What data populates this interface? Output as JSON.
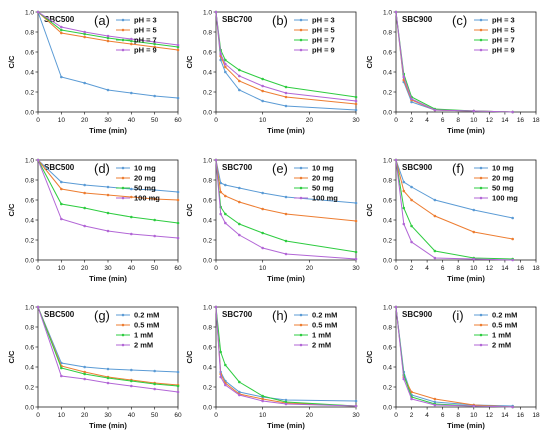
{
  "figure": {
    "colors": [
      "#5b9bd5",
      "#ed7d31",
      "#2ecc40",
      "#b266d6"
    ]
  },
  "chart_data": [
    {
      "id": "a",
      "type": "line",
      "panel_label": "(a)",
      "title": "SBC500",
      "xlabel": "Time (min)",
      "ylabel": "C/C",
      "xlim": [
        0,
        60
      ],
      "ylim": [
        0,
        1.0
      ],
      "xticks": [
        0,
        10,
        20,
        30,
        40,
        50,
        60
      ],
      "yticks": [
        0.0,
        0.2,
        0.4,
        0.6,
        0.8,
        1.0
      ],
      "x": [
        0,
        10,
        20,
        30,
        40,
        50,
        60
      ],
      "series": [
        {
          "name": "pH = 3",
          "values": [
            1.0,
            0.35,
            0.29,
            0.22,
            0.19,
            0.16,
            0.14
          ]
        },
        {
          "name": "pH = 5",
          "values": [
            1.0,
            0.79,
            0.75,
            0.71,
            0.68,
            0.65,
            0.62
          ]
        },
        {
          "name": "pH = 7",
          "values": [
            1.0,
            0.82,
            0.78,
            0.74,
            0.71,
            0.68,
            0.65
          ]
        },
        {
          "name": "pH = 9",
          "values": [
            1.0,
            0.85,
            0.8,
            0.76,
            0.73,
            0.7,
            0.67
          ]
        }
      ]
    },
    {
      "id": "b",
      "type": "line",
      "panel_label": "(b)",
      "title": "SBC700",
      "xlabel": "Time (min)",
      "ylabel": "C/C",
      "xlim": [
        0,
        30
      ],
      "ylim": [
        0,
        1.0
      ],
      "xticks": [
        0,
        10,
        20,
        30
      ],
      "yticks": [
        0.0,
        0.2,
        0.4,
        0.6,
        0.8,
        1.0
      ],
      "x": [
        0,
        1,
        2,
        5,
        10,
        15,
        30
      ],
      "series": [
        {
          "name": "pH = 3",
          "values": [
            1.0,
            0.52,
            0.4,
            0.22,
            0.11,
            0.06,
            0.02
          ]
        },
        {
          "name": "pH = 5",
          "values": [
            1.0,
            0.56,
            0.45,
            0.31,
            0.21,
            0.15,
            0.08
          ]
        },
        {
          "name": "pH = 7",
          "values": [
            1.0,
            0.62,
            0.52,
            0.42,
            0.33,
            0.25,
            0.15
          ]
        },
        {
          "name": "pH = 9",
          "values": [
            1.0,
            0.58,
            0.48,
            0.36,
            0.26,
            0.19,
            0.11
          ]
        }
      ]
    },
    {
      "id": "c",
      "type": "line",
      "panel_label": "(c)",
      "title": "SBC900",
      "xlabel": "Time (min)",
      "ylabel": "C/C",
      "xlim": [
        0,
        18
      ],
      "ylim": [
        0,
        1.0
      ],
      "xticks": [
        0,
        2,
        4,
        6,
        8,
        10,
        12,
        14,
        16,
        18
      ],
      "yticks": [
        0.0,
        0.2,
        0.4,
        0.6,
        0.8,
        1.0
      ],
      "x": [
        0,
        1,
        2,
        5,
        10,
        15
      ],
      "series": [
        {
          "name": "pH = 3",
          "values": [
            1.0,
            0.3,
            0.1,
            0.02,
            0.01,
            0.0
          ]
        },
        {
          "name": "pH = 5",
          "values": [
            1.0,
            0.32,
            0.12,
            0.02,
            0.01,
            0.0
          ]
        },
        {
          "name": "pH = 7",
          "values": [
            1.0,
            0.38,
            0.15,
            0.03,
            0.01,
            0.0
          ]
        },
        {
          "name": "pH = 9",
          "values": [
            1.0,
            0.35,
            0.13,
            0.02,
            0.01,
            0.0
          ]
        }
      ]
    },
    {
      "id": "d",
      "type": "line",
      "panel_label": "(d)",
      "title": "SBC500",
      "xlabel": "Time (min)",
      "ylabel": "C/C",
      "xlim": [
        0,
        60
      ],
      "ylim": [
        0,
        1.0
      ],
      "xticks": [
        0,
        10,
        20,
        30,
        40,
        50,
        60
      ],
      "yticks": [
        0.0,
        0.2,
        0.4,
        0.6,
        0.8,
        1.0
      ],
      "x": [
        0,
        10,
        20,
        30,
        40,
        50,
        60
      ],
      "series": [
        {
          "name": "10 mg",
          "values": [
            1.0,
            0.78,
            0.75,
            0.73,
            0.71,
            0.7,
            0.68
          ]
        },
        {
          "name": "20 mg",
          "values": [
            1.0,
            0.71,
            0.67,
            0.65,
            0.63,
            0.61,
            0.6
          ]
        },
        {
          "name": "50 mg",
          "values": [
            1.0,
            0.56,
            0.52,
            0.47,
            0.43,
            0.4,
            0.37
          ]
        },
        {
          "name": "100 mg",
          "values": [
            1.0,
            0.41,
            0.34,
            0.29,
            0.26,
            0.24,
            0.22
          ]
        }
      ]
    },
    {
      "id": "e",
      "type": "line",
      "panel_label": "(e)",
      "title": "SBC700",
      "xlabel": "Time (min)",
      "ylabel": "C/C",
      "xlim": [
        0,
        30
      ],
      "ylim": [
        0,
        1.0
      ],
      "xticks": [
        0,
        10,
        20,
        30
      ],
      "yticks": [
        0.0,
        0.2,
        0.4,
        0.6,
        0.8,
        1.0
      ],
      "x": [
        0,
        1,
        2,
        5,
        10,
        15,
        30
      ],
      "series": [
        {
          "name": "10 mg",
          "values": [
            1.0,
            0.77,
            0.75,
            0.72,
            0.67,
            0.63,
            0.57
          ]
        },
        {
          "name": "20 mg",
          "values": [
            1.0,
            0.68,
            0.64,
            0.58,
            0.51,
            0.46,
            0.39
          ]
        },
        {
          "name": "50 mg",
          "values": [
            1.0,
            0.53,
            0.46,
            0.36,
            0.27,
            0.19,
            0.08
          ]
        },
        {
          "name": "100 mg",
          "values": [
            1.0,
            0.46,
            0.37,
            0.25,
            0.12,
            0.06,
            0.01
          ]
        }
      ]
    },
    {
      "id": "f",
      "type": "line",
      "panel_label": "(f)",
      "title": "SBC900",
      "xlabel": "Time (min)",
      "ylabel": "C/C",
      "xlim": [
        0,
        18
      ],
      "ylim": [
        0,
        1.0
      ],
      "xticks": [
        0,
        2,
        4,
        6,
        8,
        10,
        12,
        14,
        16,
        18
      ],
      "yticks": [
        0.0,
        0.2,
        0.4,
        0.6,
        0.8,
        1.0
      ],
      "x": [
        0,
        1,
        2,
        5,
        10,
        15
      ],
      "series": [
        {
          "name": "10 mg",
          "values": [
            1.0,
            0.78,
            0.73,
            0.6,
            0.5,
            0.42
          ]
        },
        {
          "name": "20 mg",
          "values": [
            1.0,
            0.69,
            0.6,
            0.44,
            0.28,
            0.21
          ]
        },
        {
          "name": "50 mg",
          "values": [
            1.0,
            0.52,
            0.34,
            0.09,
            0.02,
            0.01
          ]
        },
        {
          "name": "100 mg",
          "values": [
            1.0,
            0.36,
            0.18,
            0.02,
            0.01,
            0.0
          ]
        }
      ]
    },
    {
      "id": "g",
      "type": "line",
      "panel_label": "(g)",
      "title": "SBC500",
      "xlabel": "Time (min)",
      "ylabel": "C/C",
      "xlim": [
        0,
        60
      ],
      "ylim": [
        0,
        1.0
      ],
      "xticks": [
        0,
        10,
        20,
        30,
        40,
        50,
        60
      ],
      "yticks": [
        0.0,
        0.2,
        0.4,
        0.6,
        0.8,
        1.0
      ],
      "x": [
        0,
        10,
        20,
        30,
        40,
        50,
        60
      ],
      "series": [
        {
          "name": "0.2 mM",
          "values": [
            1.0,
            0.44,
            0.4,
            0.38,
            0.37,
            0.36,
            0.35
          ]
        },
        {
          "name": "0.5 mM",
          "values": [
            1.0,
            0.41,
            0.35,
            0.3,
            0.27,
            0.24,
            0.22
          ]
        },
        {
          "name": "1 mM",
          "values": [
            1.0,
            0.39,
            0.33,
            0.29,
            0.26,
            0.23,
            0.21
          ]
        },
        {
          "name": "2 mM",
          "values": [
            1.0,
            0.31,
            0.28,
            0.24,
            0.21,
            0.18,
            0.15
          ]
        }
      ]
    },
    {
      "id": "h",
      "type": "line",
      "panel_label": "(h)",
      "title": "SBC700",
      "xlabel": "Time (min)",
      "ylabel": "C/C",
      "xlim": [
        0,
        30
      ],
      "ylim": [
        0,
        1.0
      ],
      "xticks": [
        0,
        10,
        20,
        30
      ],
      "yticks": [
        0.0,
        0.2,
        0.4,
        0.6,
        0.8,
        1.0
      ],
      "x": [
        0,
        1,
        2,
        5,
        10,
        15,
        30
      ],
      "series": [
        {
          "name": "0.2 mM",
          "values": [
            1.0,
            0.35,
            0.26,
            0.15,
            0.1,
            0.07,
            0.06
          ]
        },
        {
          "name": "0.5 mM",
          "values": [
            1.0,
            0.33,
            0.24,
            0.13,
            0.08,
            0.04,
            0.01
          ]
        },
        {
          "name": "1 mM",
          "values": [
            1.0,
            0.55,
            0.42,
            0.25,
            0.11,
            0.05,
            0.01
          ]
        },
        {
          "name": "2 mM",
          "values": [
            1.0,
            0.3,
            0.22,
            0.12,
            0.06,
            0.03,
            0.01
          ]
        }
      ]
    },
    {
      "id": "i",
      "type": "line",
      "panel_label": "(i)",
      "title": "SBC900",
      "xlabel": "Time (min)",
      "ylabel": "C/C",
      "xlim": [
        0,
        18
      ],
      "ylim": [
        0,
        1.0
      ],
      "xticks": [
        0,
        2,
        4,
        6,
        8,
        10,
        12,
        14,
        16,
        18
      ],
      "yticks": [
        0.0,
        0.2,
        0.4,
        0.6,
        0.8,
        1.0
      ],
      "x": [
        0,
        1,
        2,
        5,
        10,
        15
      ],
      "series": [
        {
          "name": "0.2 mM",
          "values": [
            1.0,
            0.35,
            0.12,
            0.05,
            0.02,
            0.01
          ]
        },
        {
          "name": "0.5 mM",
          "values": [
            1.0,
            0.3,
            0.15,
            0.08,
            0.02,
            0.0
          ]
        },
        {
          "name": "1 mM",
          "values": [
            1.0,
            0.32,
            0.1,
            0.03,
            0.01,
            0.0
          ]
        },
        {
          "name": "2 mM",
          "values": [
            1.0,
            0.28,
            0.08,
            0.02,
            0.01,
            0.0
          ]
        }
      ]
    }
  ]
}
